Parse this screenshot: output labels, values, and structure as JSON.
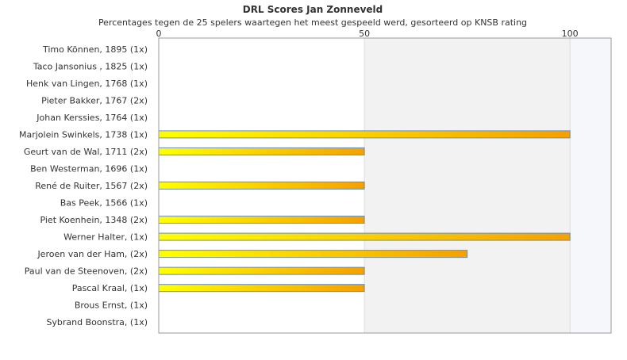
{
  "chart_data": {
    "type": "bar",
    "orientation": "horizontal",
    "title": "DRL Scores Jan Zonneveld",
    "subtitle": "Percentages tegen de 25 spelers waartegen het meest gespeeld werd, gesorteerd op KNSB rating",
    "xlim": [
      0,
      110
    ],
    "xticks": [
      "0",
      "50",
      "100"
    ],
    "categories": [
      "Timo Können, 1895 (1x)",
      "Taco Jansonius , 1825 (1x)",
      "Henk van Lingen, 1768 (1x)",
      "Pieter Bakker, 1767 (2x)",
      "Johan Kerssies, 1764 (1x)",
      "Marjolein Swinkels, 1738 (1x)",
      "Geurt van de Wal, 1711 (2x)",
      "Ben Westerman, 1696 (1x)",
      "René de Ruiter, 1567 (2x)",
      "Bas Peek, 1566 (1x)",
      "Piet Koenhein, 1348 (2x)",
      "Werner Halter,  (1x)",
      "Jeroen van der Ham,  (2x)",
      "Paul van de Steenoven,  (2x)",
      "Pascal Kraal,  (1x)",
      "Brous Ernst,  (1x)",
      "Sybrand Boonstra,  (1x)"
    ],
    "values": [
      0,
      0,
      0,
      0,
      0,
      100,
      50,
      0,
      50,
      0,
      50,
      100,
      75,
      50,
      50,
      0,
      0
    ],
    "colors": {
      "bar_start": "#ffff00",
      "bar_end": "#f5a000",
      "bar_stroke": "#6a8fb0"
    }
  }
}
